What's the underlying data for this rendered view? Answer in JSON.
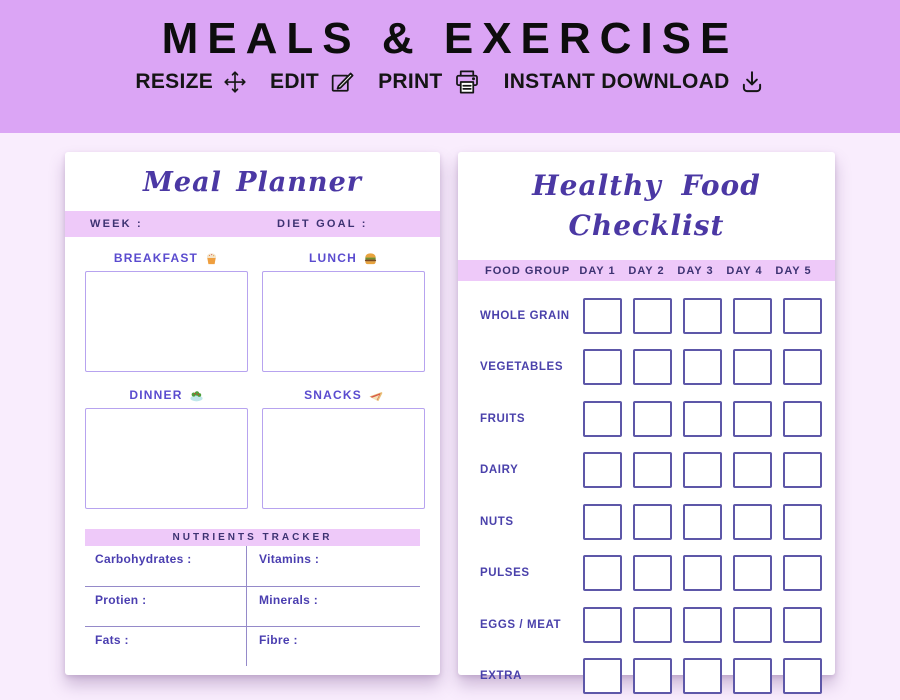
{
  "header": {
    "title": "MEALS & EXERCISE",
    "toolbar": [
      {
        "label": "RESIZE",
        "icon": "resize-arrows-icon"
      },
      {
        "label": "EDIT",
        "icon": "edit-pencil-icon"
      },
      {
        "label": "PRINT",
        "icon": "printer-icon"
      },
      {
        "label": "INSTANT DOWNLOAD",
        "icon": "download-icon"
      }
    ]
  },
  "meal_planner": {
    "title": "Meal Planner",
    "week_label": "WEEK :",
    "diet_goal_label": "DIET GOAL :",
    "meals": [
      {
        "label": "BREAKFAST",
        "icon": "cupcake"
      },
      {
        "label": "LUNCH",
        "icon": "burger"
      },
      {
        "label": "DINNER",
        "icon": "salad"
      },
      {
        "label": "SNACKS",
        "icon": "sandwich"
      }
    ],
    "nutrients": {
      "title": "NUTRIENTS TRACKER",
      "fields": [
        "Carbohydrates :",
        "Vitamins :",
        "Protien :",
        "Minerals :",
        "Fats :",
        "Fibre :"
      ]
    }
  },
  "checklist": {
    "title": "Healthy Food Checklist",
    "food_group_header": "FOOD GROUP",
    "days": [
      "DAY 1",
      "DAY 2",
      "DAY 3",
      "DAY 4",
      "DAY 5"
    ],
    "rows": [
      "WHOLE GRAIN",
      "VEGETABLES",
      "FRUITS",
      "DAIRY",
      "NUTS",
      "PULSES",
      "EGGS / MEAT",
      "EXTRA"
    ]
  },
  "colors": {
    "banner_bg": "#dba5f5",
    "page_bg": "#f9edfd",
    "card_bg": "#ffffff",
    "band_bg": "#eec9f9",
    "title_text": "#0d0d0d",
    "script_purple": "#4b38a4",
    "band_text": "#3d3272",
    "meal_label_purple": "#5a4bcf",
    "row_label_purple": "#4a41ab",
    "nutrient_text": "#4a3eb0",
    "entry_box_border": "#b7a3ef",
    "checkbox_border": "#5d57a8",
    "table_line": "#958ac9"
  }
}
